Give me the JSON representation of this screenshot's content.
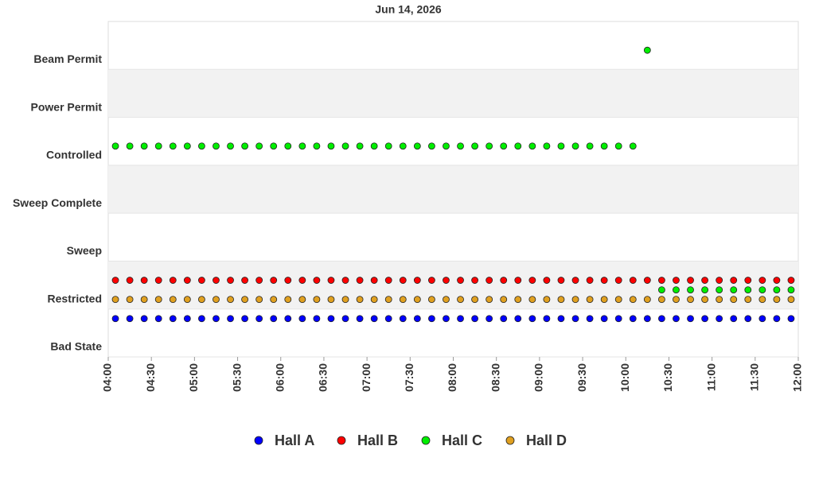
{
  "chart_data": {
    "type": "scatter",
    "title": "Jun 14, 2026",
    "x": [
      "04:05",
      "04:15",
      "04:25",
      "04:35",
      "04:45",
      "04:55",
      "05:05",
      "05:15",
      "05:25",
      "05:35",
      "05:45",
      "05:55",
      "06:05",
      "06:15",
      "06:25",
      "06:35",
      "06:45",
      "06:55",
      "07:05",
      "07:15",
      "07:25",
      "07:35",
      "07:45",
      "07:55",
      "08:05",
      "08:15",
      "08:25",
      "08:35",
      "08:45",
      "08:55",
      "09:05",
      "09:15",
      "09:25",
      "09:35",
      "09:45",
      "09:55",
      "10:05",
      "10:15",
      "10:25",
      "10:35",
      "10:45",
      "10:55",
      "11:05",
      "11:15",
      "11:25",
      "11:35",
      "11:45",
      "11:55"
    ],
    "xlim": [
      "04:00",
      "12:00"
    ],
    "xticks": [
      "04:00",
      "04:30",
      "05:00",
      "05:30",
      "06:00",
      "06:30",
      "07:00",
      "07:30",
      "08:00",
      "08:30",
      "09:00",
      "09:30",
      "10:00",
      "10:30",
      "11:00",
      "11:30",
      "12:00"
    ],
    "ylim": [
      0,
      7
    ],
    "yticks": [
      {
        "value": 0,
        "label": "Bad State"
      },
      {
        "value": 1,
        "label": "Restricted"
      },
      {
        "value": 2,
        "label": "Sweep"
      },
      {
        "value": 3,
        "label": "Sweep Complete"
      },
      {
        "value": 4,
        "label": "Controlled"
      },
      {
        "value": 5,
        "label": "Power Permit"
      },
      {
        "value": 6,
        "label": "Beam Permit"
      }
    ],
    "series": [
      {
        "name": "Hall A",
        "color": "#0000ff",
        "values": [
          0.8,
          0.8,
          0.8,
          0.8,
          0.8,
          0.8,
          0.8,
          0.8,
          0.8,
          0.8,
          0.8,
          0.8,
          0.8,
          0.8,
          0.8,
          0.8,
          0.8,
          0.8,
          0.8,
          0.8,
          0.8,
          0.8,
          0.8,
          0.8,
          0.8,
          0.8,
          0.8,
          0.8,
          0.8,
          0.8,
          0.8,
          0.8,
          0.8,
          0.8,
          0.8,
          0.8,
          0.8,
          0.8,
          0.8,
          0.8,
          0.8,
          0.8,
          0.8,
          0.8,
          0.8,
          0.8,
          0.8,
          0.8
        ]
      },
      {
        "name": "Hall B",
        "color": "#ff0000",
        "values": [
          1.6,
          1.6,
          1.6,
          1.6,
          1.6,
          1.6,
          1.6,
          1.6,
          1.6,
          1.6,
          1.6,
          1.6,
          1.6,
          1.6,
          1.6,
          1.6,
          1.6,
          1.6,
          1.6,
          1.6,
          1.6,
          1.6,
          1.6,
          1.6,
          1.6,
          1.6,
          1.6,
          1.6,
          1.6,
          1.6,
          1.6,
          1.6,
          1.6,
          1.6,
          1.6,
          1.6,
          1.6,
          1.6,
          1.6,
          1.6,
          1.6,
          1.6,
          1.6,
          1.6,
          1.6,
          1.6,
          1.6,
          1.6
        ]
      },
      {
        "name": "Hall C",
        "color": "#00ee00",
        "values": [
          4.4,
          4.4,
          4.4,
          4.4,
          4.4,
          4.4,
          4.4,
          4.4,
          4.4,
          4.4,
          4.4,
          4.4,
          4.4,
          4.4,
          4.4,
          4.4,
          4.4,
          4.4,
          4.4,
          4.4,
          4.4,
          4.4,
          4.4,
          4.4,
          4.4,
          4.4,
          4.4,
          4.4,
          4.4,
          4.4,
          4.4,
          4.4,
          4.4,
          4.4,
          4.4,
          4.4,
          4.4,
          6.4,
          1.4,
          1.4,
          1.4,
          1.4,
          1.4,
          1.4,
          1.4,
          1.4,
          1.4,
          1.4
        ]
      },
      {
        "name": "Hall D",
        "color": "#e0a020",
        "values": [
          1.2,
          1.2,
          1.2,
          1.2,
          1.2,
          1.2,
          1.2,
          1.2,
          1.2,
          1.2,
          1.2,
          1.2,
          1.2,
          1.2,
          1.2,
          1.2,
          1.2,
          1.2,
          1.2,
          1.2,
          1.2,
          1.2,
          1.2,
          1.2,
          1.2,
          1.2,
          1.2,
          1.2,
          1.2,
          1.2,
          1.2,
          1.2,
          1.2,
          1.2,
          1.2,
          1.2,
          1.2,
          1.2,
          1.2,
          1.2,
          1.2,
          1.2,
          1.2,
          1.2,
          1.2,
          1.2,
          1.2,
          1.2
        ]
      }
    ],
    "grid": true,
    "legend": "bottom"
  }
}
